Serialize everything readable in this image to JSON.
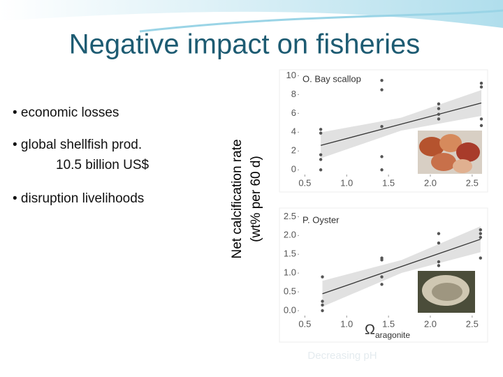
{
  "slide": {
    "title": "Negative impact on fisheries",
    "bullets": [
      "• economic losses",
      "• global shellfish prod.",
      "10.5  billion US$",
      "• disruption livelihoods"
    ],
    "y_label": [
      "Net calcification rate",
      "(wt% per 60 d)"
    ],
    "footer": "Decreasing pH"
  },
  "chart_data": [
    {
      "type": "scatter",
      "title": "O. Bay scallop",
      "color": "#555555",
      "x": [
        0.69,
        0.69,
        0.69,
        0.69,
        0.69,
        1.42,
        1.42,
        1.42,
        1.42,
        1.42,
        2.1,
        2.1,
        2.1,
        2.1,
        2.61,
        2.61,
        2.61,
        2.61
      ],
      "values": [
        4.3,
        3.9,
        1.6,
        1.1,
        0,
        9.5,
        8.5,
        4.6,
        1.4,
        0,
        7,
        6.5,
        5.9,
        5.4,
        9.2,
        8.8,
        5.4,
        4.7
      ],
      "trend": {
        "x": [
          0.69,
          2.61
        ],
        "y": [
          2.6,
          7.1
        ]
      },
      "xlim": [
        0.43,
        2.66
      ],
      "ylim": [
        -0.5,
        10.4
      ],
      "xticks": [
        0.5,
        {
          "value": 1,
          "label": "1.0"
        },
        1.5,
        {
          "value": 2,
          "label": "2.0"
        },
        2.5
      ],
      "yticks": [
        0,
        2,
        4,
        6,
        8,
        10
      ]
    },
    {
      "type": "scatter",
      "title": "P. Oyster",
      "color": "#555555",
      "x": [
        0.71,
        0.71,
        0.71,
        0.71,
        1.42,
        1.42,
        1.42,
        1.42,
        2.1,
        2.1,
        2.1,
        2.1,
        2.6,
        2.6,
        2.6,
        2.6
      ],
      "values": [
        0.9,
        0.25,
        0.15,
        0,
        1.4,
        1.35,
        0.9,
        0.7,
        2.05,
        1.8,
        1.3,
        1.2,
        2.15,
        2.05,
        1.95,
        1.4
      ],
      "trend": {
        "x": [
          0.71,
          2.6
        ],
        "y": [
          0.45,
          1.9
        ]
      },
      "xlim": [
        0.43,
        2.66
      ],
      "ylim": [
        -0.13,
        2.6
      ],
      "xticks": [
        0.5,
        {
          "value": 1,
          "label": "1.0"
        },
        1.5,
        {
          "value": 2,
          "label": "2.0"
        },
        2.5
      ],
      "yticks": [
        {
          "value": 0,
          "label": "0.0"
        },
        0.5,
        {
          "value": 1,
          "label": "1.0"
        },
        1.5,
        {
          "value": 2,
          "label": "2.0"
        },
        2.5
      ],
      "x_label": "Ω",
      "x_label_sub": "aragonite"
    }
  ]
}
